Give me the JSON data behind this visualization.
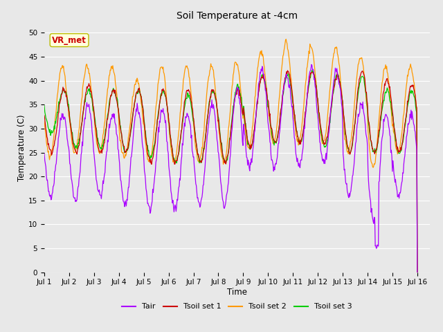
{
  "title": "Soil Temperature at -4cm",
  "xlabel": "Time",
  "ylabel": "Temperature (C)",
  "ylim": [
    0,
    52
  ],
  "yticks": [
    0,
    5,
    10,
    15,
    20,
    25,
    30,
    35,
    40,
    45,
    50
  ],
  "annotation_text": "VR_met",
  "annotation_color": "#cc0000",
  "annotation_bg": "#ffffdd",
  "bg_color": "#e8e8e8",
  "plot_bg": "#e8e8e8",
  "grid_color": "#ffffff",
  "colors": {
    "Tair": "#aa00ff",
    "Tsoil1": "#cc0000",
    "Tsoil2": "#ff9900",
    "Tsoil3": "#00cc00"
  },
  "legend_labels": [
    "Tair",
    "Tsoil set 1",
    "Tsoil set 2",
    "Tsoil set 3"
  ],
  "n_days": 15,
  "points_per_day": 48,
  "tair_min": [
    16,
    15,
    16,
    14,
    13,
    13,
    14,
    14,
    22,
    22,
    22,
    23,
    16,
    11,
    16
  ],
  "tair_max": [
    33,
    35,
    33,
    34,
    34,
    33,
    35,
    38,
    42,
    41,
    43,
    42,
    35,
    33,
    33
  ],
  "ts1_min": [
    25,
    25,
    25,
    25,
    23,
    23,
    23,
    23,
    26,
    27,
    27,
    27,
    25,
    25,
    25
  ],
  "ts1_max": [
    38,
    39,
    38,
    38,
    38,
    38,
    38,
    38,
    41,
    42,
    42,
    41,
    42,
    40,
    39
  ],
  "ts2_min": [
    24,
    25,
    25,
    24,
    23,
    23,
    23,
    23,
    26,
    27,
    27,
    27,
    25,
    22,
    25
  ],
  "ts2_max": [
    43,
    43,
    43,
    40,
    43,
    43,
    43,
    44,
    46,
    48,
    47,
    47,
    45,
    43,
    43
  ],
  "ts3_min": [
    29,
    26,
    26,
    25,
    24,
    23,
    23,
    23,
    26,
    27,
    27,
    26,
    25,
    25,
    25
  ],
  "ts3_max": [
    38,
    38,
    38,
    38,
    38,
    37,
    38,
    39,
    41,
    41,
    42,
    41,
    41,
    38,
    38
  ],
  "tair_phase": 0.25,
  "ts1_phase": 0.28,
  "ts2_phase": 0.22,
  "ts3_phase": 0.28
}
